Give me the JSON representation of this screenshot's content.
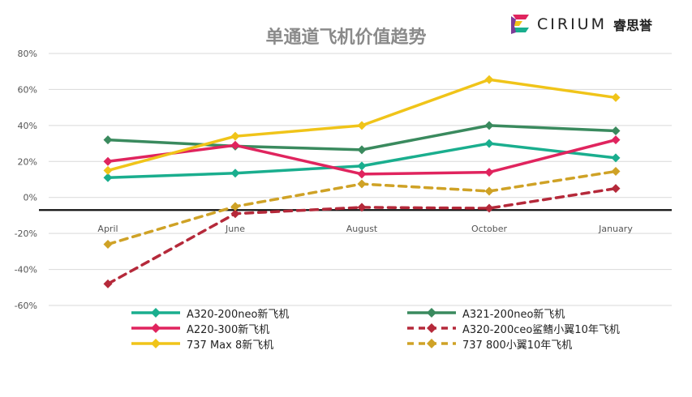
{
  "header": {
    "title": "单通道飞机价值趋势",
    "logo_text": "CIRIUM",
    "logo_cn": "睿思誉"
  },
  "chart_data": {
    "type": "line",
    "title": "单通道飞机价值趋势",
    "categories": [
      "April",
      "June",
      "August",
      "October",
      "January"
    ],
    "y_ticks": [
      "80%",
      "60%",
      "40%",
      "20%",
      "0%",
      "-20%",
      "-40%",
      "-60%"
    ],
    "ylim": [
      -60,
      80
    ],
    "baseline": -7,
    "grid": true,
    "legend_position": "bottom",
    "series": [
      {
        "name": "A320-200neo新飞机",
        "values": [
          11,
          13.5,
          17.5,
          30,
          22
        ],
        "color": "#1aae8e",
        "dashed": false
      },
      {
        "name": "A321-200neo新飞机",
        "values": [
          32,
          28.5,
          26.5,
          40,
          37
        ],
        "color": "#3a8a5e",
        "dashed": false
      },
      {
        "name": "A220-300新飞机",
        "values": [
          20,
          29,
          13,
          14,
          32
        ],
        "color": "#e0245e",
        "dashed": false
      },
      {
        "name": "A320-200ceo鲨鳍小翼10年飞机",
        "values": [
          -48,
          -9,
          -5.5,
          -6,
          5
        ],
        "color": "#b5293a",
        "dashed": true
      },
      {
        "name": "737 Max 8新飞机",
        "values": [
          15,
          34,
          40,
          65.5,
          55.5
        ],
        "color": "#f0c419",
        "dashed": false
      },
      {
        "name": "737 800小翼10年飞机",
        "values": [
          -26,
          -5,
          7.5,
          3.5,
          14.5
        ],
        "color": "#cfa226",
        "dashed": true
      }
    ]
  }
}
